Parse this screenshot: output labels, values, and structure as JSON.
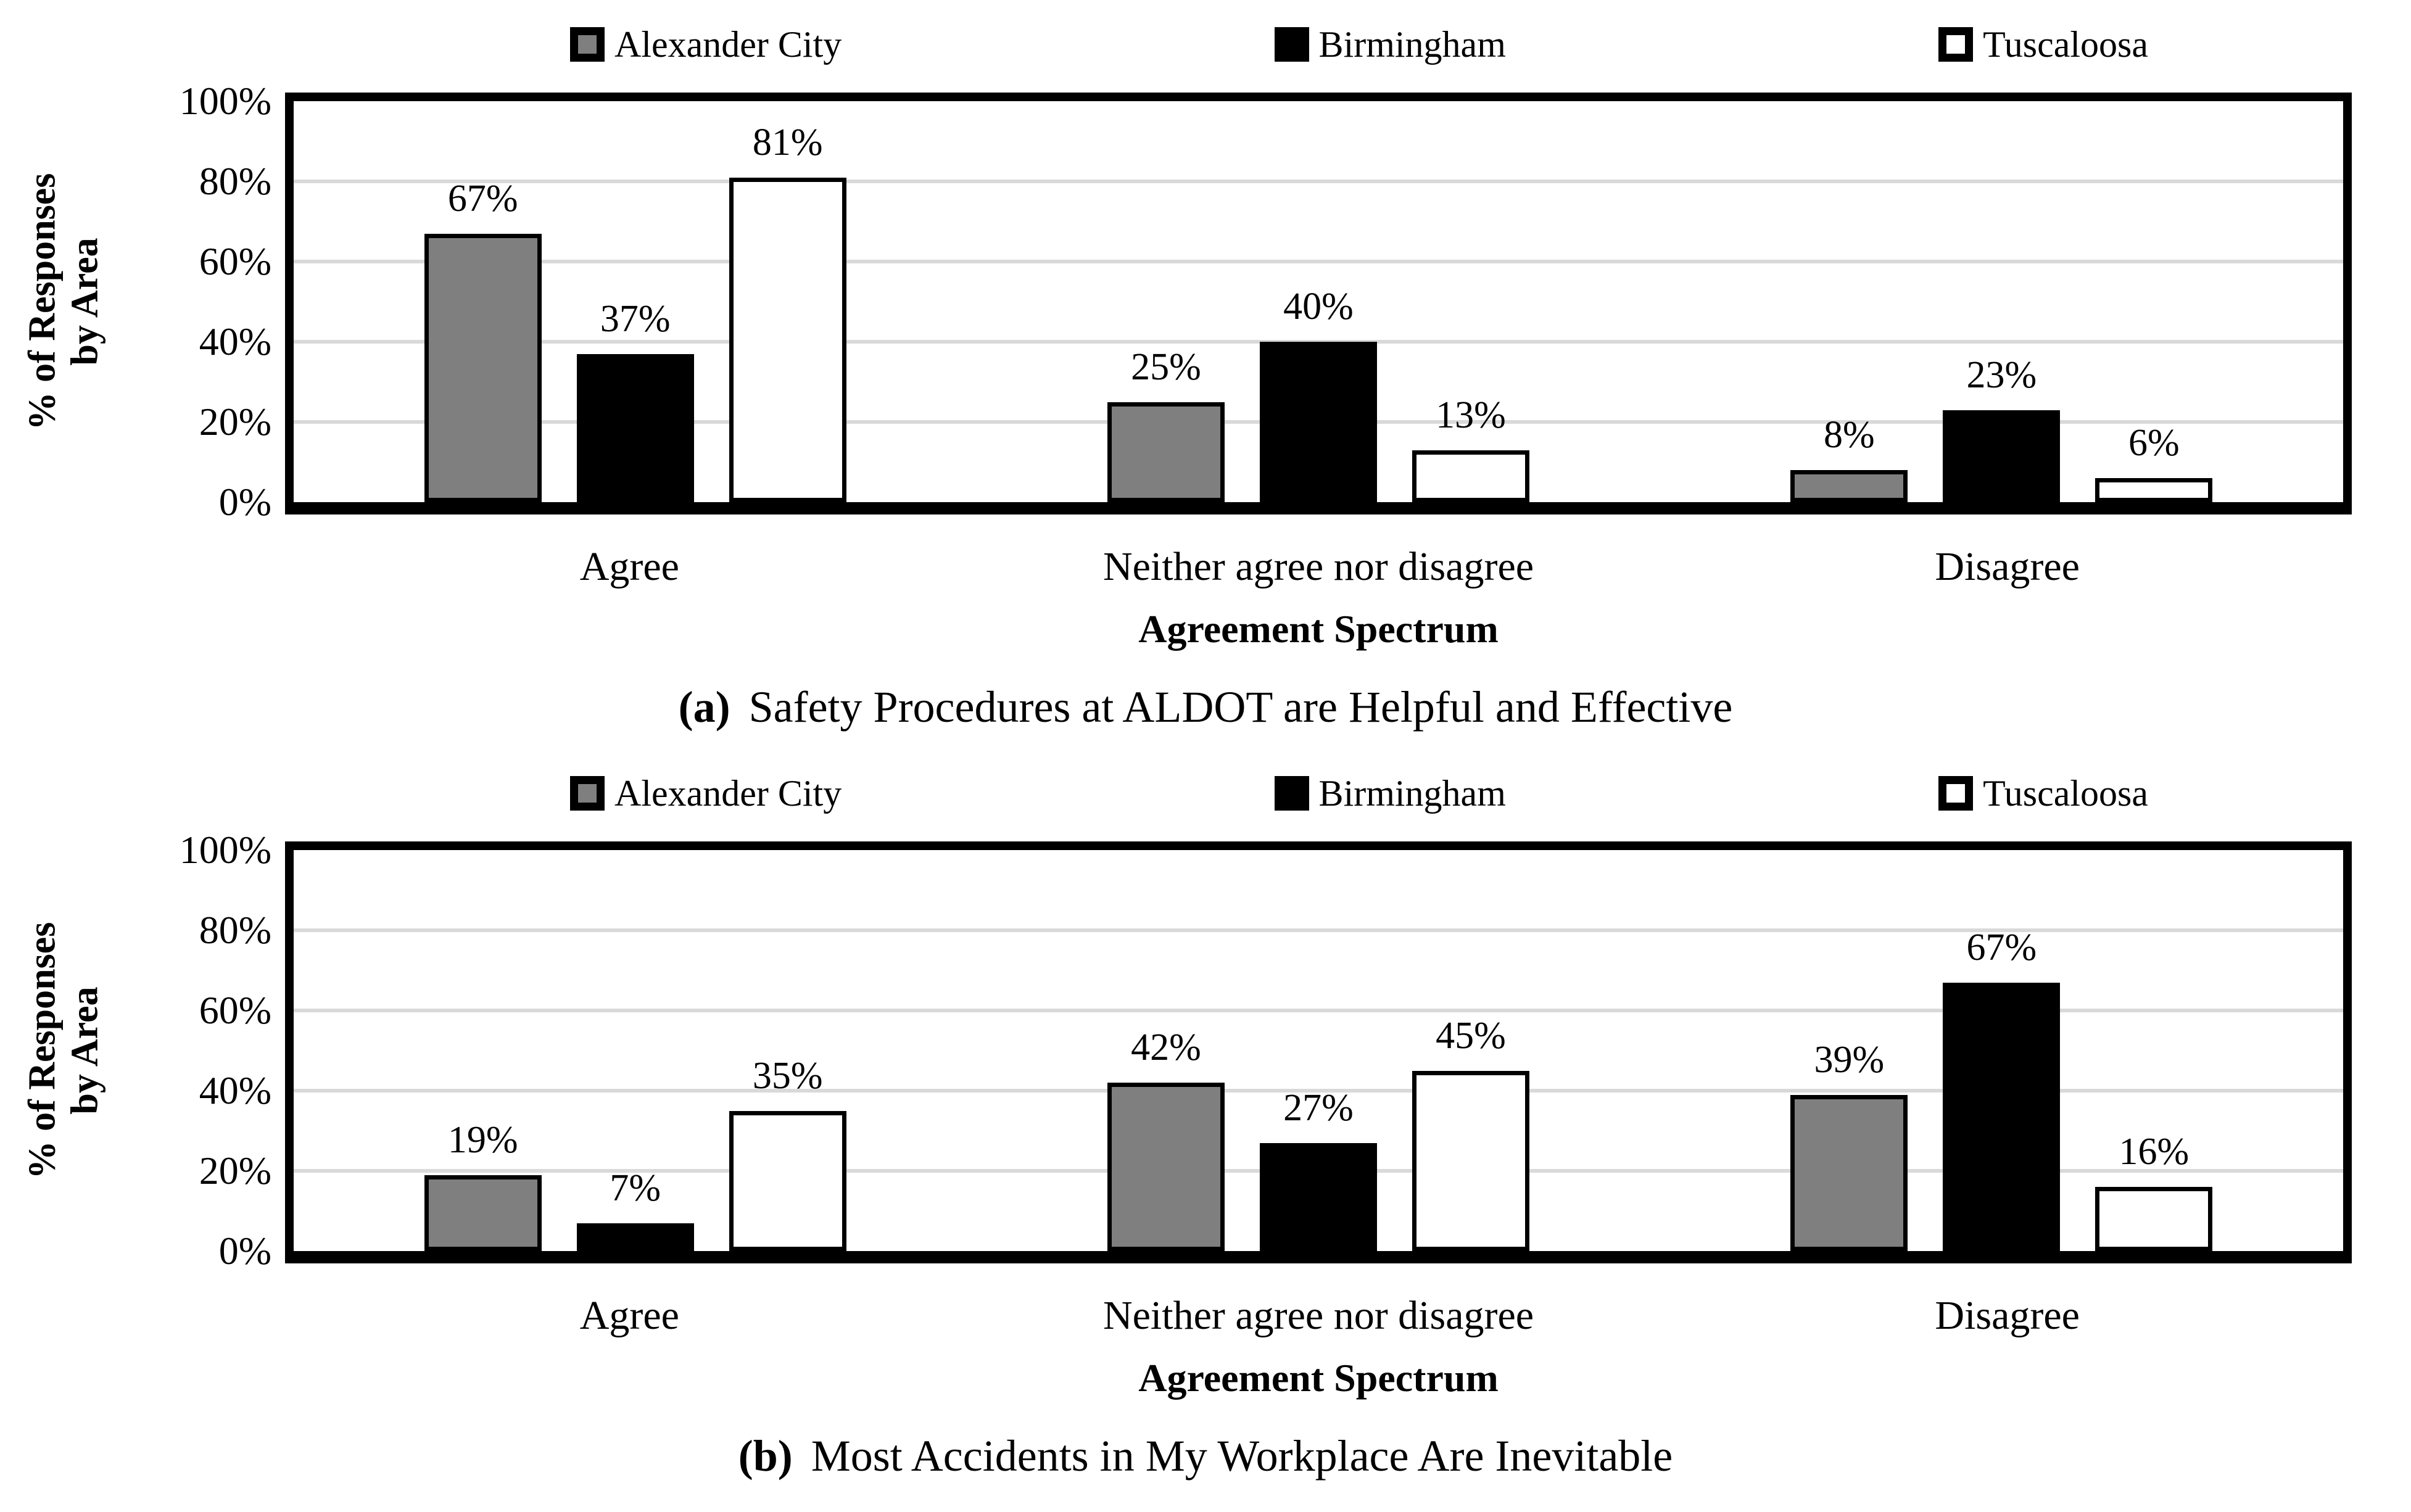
{
  "colors": {
    "bar_gray": "#7f7f7f",
    "bar_black": "#000000",
    "bar_white": "#ffffff",
    "gridline": "#d9d9d9",
    "plot_border": "#000000"
  },
  "axis": {
    "y_ticks": [
      "0%",
      "20%",
      "40%",
      "60%",
      "80%",
      "100%"
    ],
    "y_title_line1": "% of Responses",
    "y_title_line2": "by Area"
  },
  "chart_data": [
    {
      "type": "bar",
      "panel": "a",
      "caption_prefix": "(a)",
      "caption": "Safety Procedures at ALDOT are Helpful and Effective",
      "xlabel": "Agreement Spectrum",
      "ylabel": "% of Responses by Area",
      "ylim": [
        0,
        100
      ],
      "grid": true,
      "legend_position": "top",
      "categories": [
        "Agree",
        "Neither agree nor disagree",
        "Disagree"
      ],
      "series": [
        {
          "name": "Alexander City",
          "fill": "#7f7f7f",
          "values": [
            67,
            25,
            8
          ],
          "labels": [
            "67%",
            "25%",
            "8%"
          ]
        },
        {
          "name": "Birmingham",
          "fill": "#000000",
          "values": [
            37,
            40,
            23
          ],
          "labels": [
            "37%",
            "40%",
            "23%"
          ]
        },
        {
          "name": "Tuscaloosa",
          "fill": "#ffffff",
          "values": [
            81,
            13,
            6
          ],
          "labels": [
            "81%",
            "13%",
            "6%"
          ]
        }
      ]
    },
    {
      "type": "bar",
      "panel": "b",
      "caption_prefix": "(b)",
      "caption": "Most Accidents in My Workplace Are Inevitable",
      "xlabel": "Agreement Spectrum",
      "ylabel": "% of Responses by Area",
      "ylim": [
        0,
        100
      ],
      "grid": true,
      "legend_position": "top",
      "categories": [
        "Agree",
        "Neither agree nor disagree",
        "Disagree"
      ],
      "series": [
        {
          "name": "Alexander City",
          "fill": "#7f7f7f",
          "values": [
            19,
            42,
            39
          ],
          "labels": [
            "19%",
            "42%",
            "39%"
          ]
        },
        {
          "name": "Birmingham",
          "fill": "#000000",
          "values": [
            7,
            27,
            67
          ],
          "labels": [
            "7%",
            "27%",
            "67%"
          ]
        },
        {
          "name": "Tuscaloosa",
          "fill": "#ffffff",
          "values": [
            35,
            45,
            16
          ],
          "labels": [
            "35%",
            "45%",
            "16%"
          ]
        }
      ]
    }
  ]
}
